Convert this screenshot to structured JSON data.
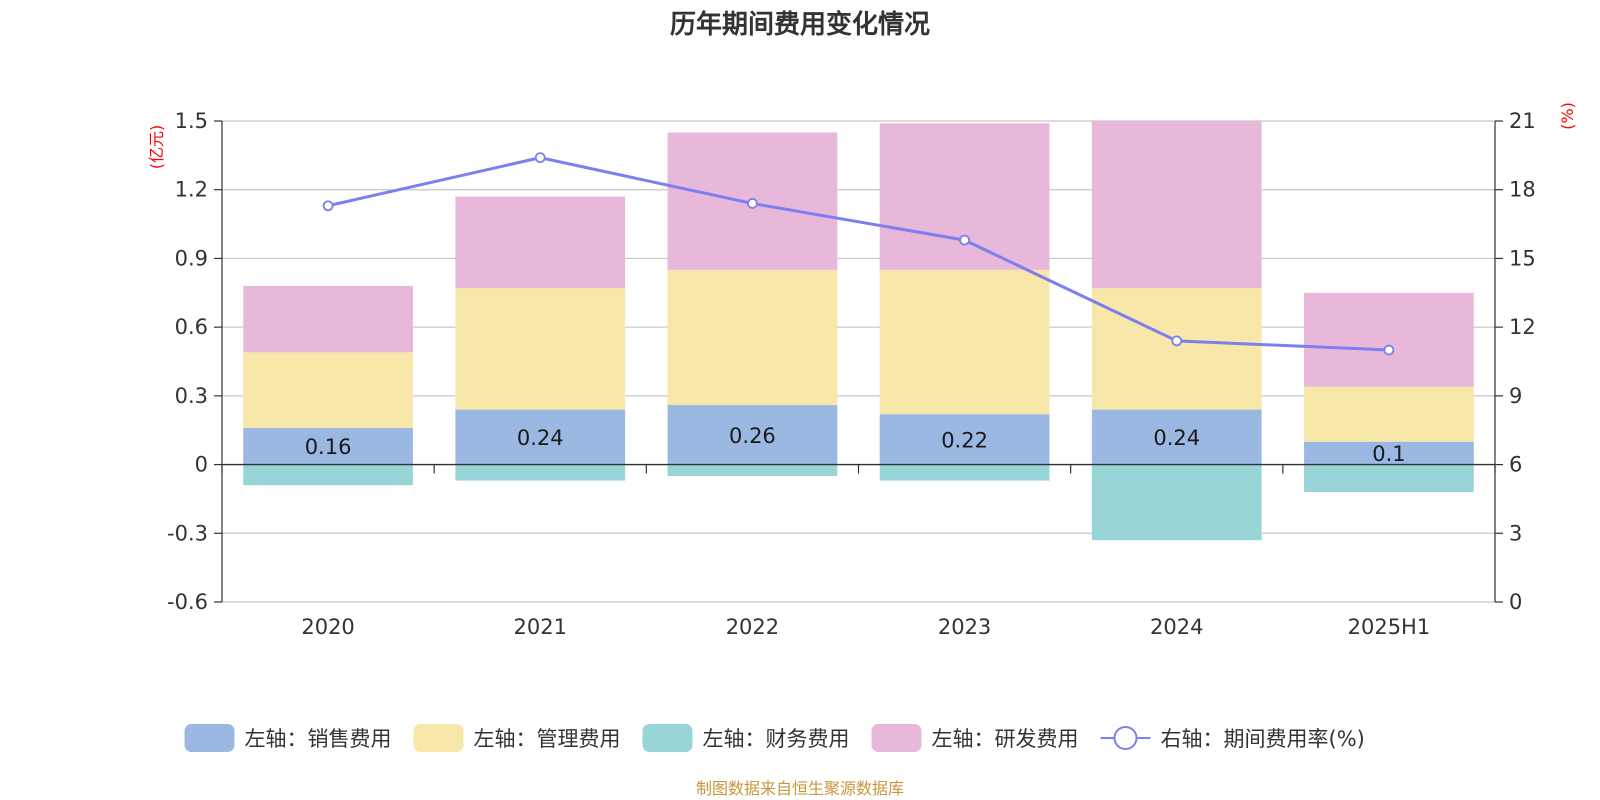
{
  "chart_data": {
    "type": "bar",
    "title": "历年期间费用变化情况",
    "categories": [
      "2020",
      "2021",
      "2022",
      "2023",
      "2024",
      "2025H1"
    ],
    "left_axis": {
      "unit": "(亿元)",
      "ylim": [
        -0.6,
        1.5
      ],
      "ticks": [
        "-0.6",
        "-0.3",
        "0",
        "0.3",
        "0.6",
        "0.9",
        "1.2",
        "1.5"
      ]
    },
    "right_axis": {
      "unit": "(%)",
      "ylim": [
        0,
        21
      ],
      "ticks": [
        "0",
        "3",
        "6",
        "9",
        "12",
        "15",
        "18",
        "21"
      ]
    },
    "series": [
      {
        "name": "左轴：销售费用",
        "axis": "left",
        "type": "bar",
        "color": "#9bb8e2",
        "values": [
          0.16,
          0.24,
          0.26,
          0.22,
          0.24,
          0.1
        ],
        "labels": [
          "0.16",
          "0.24",
          "0.26",
          "0.22",
          "0.24",
          "0.1"
        ]
      },
      {
        "name": "左轴：管理费用",
        "axis": "left",
        "type": "bar",
        "color": "#f7e7a8",
        "values": [
          0.33,
          0.53,
          0.59,
          0.63,
          0.53,
          0.24
        ]
      },
      {
        "name": "左轴：财务费用",
        "axis": "left",
        "type": "bar",
        "color": "#98d5d6",
        "values": [
          -0.09,
          -0.07,
          -0.05,
          -0.07,
          -0.33,
          -0.12
        ]
      },
      {
        "name": "左轴：研发费用",
        "axis": "left",
        "type": "bar",
        "color": "#e7b8da",
        "values": [
          0.29,
          0.4,
          0.6,
          0.64,
          0.73,
          0.41
        ]
      },
      {
        "name": "右轴：期间费用率(%)",
        "axis": "right",
        "type": "line",
        "color": "#7b7ff0",
        "values": [
          17.3,
          19.4,
          17.4,
          15.8,
          11.4,
          11.0
        ]
      }
    ],
    "legend_position": "bottom",
    "grid": true,
    "source": "制图数据来自恒生聚源数据库"
  }
}
